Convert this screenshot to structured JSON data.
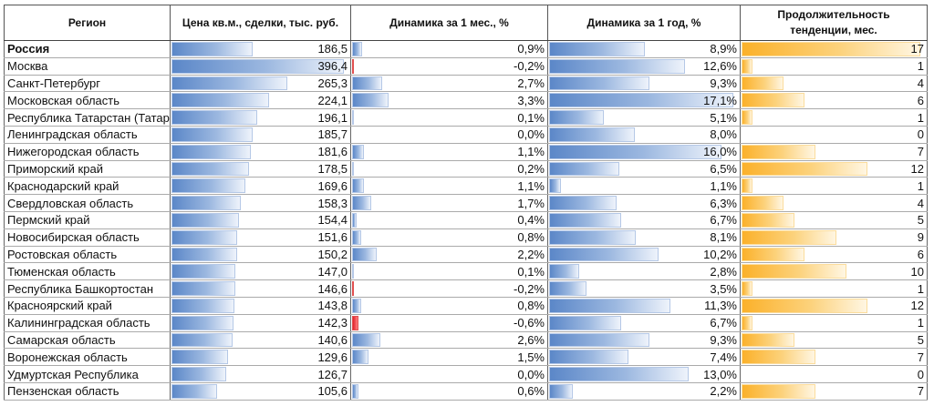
{
  "chart_data": {
    "type": "table",
    "columns": [
      "Регион",
      "Цена кв.м., сделки, тыс. руб.",
      "Динамика за 1 мес., %",
      "Динамика за 1 год, %",
      "Продолжительность тенденции, мес."
    ],
    "colors": {
      "bar_blue": "#5b87c8",
      "bar_negative": "#e0202a",
      "bar_orange": "#fbb12a"
    },
    "rows": [
      {
        "region": "Россия",
        "price": "186,5",
        "m1": "0,9%",
        "y1": "8,9%",
        "dur": "17"
      },
      {
        "region": "Москва",
        "price": "396,4",
        "m1": "-0,2%",
        "y1": "12,6%",
        "dur": "1"
      },
      {
        "region": "Санкт-Петербург",
        "price": "265,3",
        "m1": "2,7%",
        "y1": "9,3%",
        "dur": "4"
      },
      {
        "region": "Московская область",
        "price": "224,1",
        "m1": "3,3%",
        "y1": "17,1%",
        "dur": "6"
      },
      {
        "region": "Республика Татарстан (Татар",
        "price": "196,1",
        "m1": "0,1%",
        "y1": "5,1%",
        "dur": "1"
      },
      {
        "region": "Ленинградская область",
        "price": "185,7",
        "m1": "0,0%",
        "y1": "8,0%",
        "dur": "0"
      },
      {
        "region": "Нижегородская область",
        "price": "181,6",
        "m1": "1,1%",
        "y1": "16,0%",
        "dur": "7"
      },
      {
        "region": "Приморский край",
        "price": "178,5",
        "m1": "0,2%",
        "y1": "6,5%",
        "dur": "12"
      },
      {
        "region": "Краснодарский край",
        "price": "169,6",
        "m1": "1,1%",
        "y1": "1,1%",
        "dur": "1"
      },
      {
        "region": "Свердловская область",
        "price": "158,3",
        "m1": "1,7%",
        "y1": "6,3%",
        "dur": "4"
      },
      {
        "region": "Пермский край",
        "price": "154,4",
        "m1": "0,4%",
        "y1": "6,7%",
        "dur": "5"
      },
      {
        "region": "Новосибирская область",
        "price": "151,6",
        "m1": "0,8%",
        "y1": "8,1%",
        "dur": "9"
      },
      {
        "region": "Ростовская область",
        "price": "150,2",
        "m1": "2,2%",
        "y1": "10,2%",
        "dur": "6"
      },
      {
        "region": "Тюменская область",
        "price": "147,0",
        "m1": "0,1%",
        "y1": "2,8%",
        "dur": "10"
      },
      {
        "region": "Республика Башкортостан",
        "price": "146,6",
        "m1": "-0,2%",
        "y1": "3,5%",
        "dur": "1"
      },
      {
        "region": "Красноярский край",
        "price": "143,8",
        "m1": "0,8%",
        "y1": "11,3%",
        "dur": "12"
      },
      {
        "region": "Калининградская область",
        "price": "142,3",
        "m1": "-0,6%",
        "y1": "6,7%",
        "dur": "1"
      },
      {
        "region": "Самарская область",
        "price": "140,6",
        "m1": "2,6%",
        "y1": "9,3%",
        "dur": "5"
      },
      {
        "region": "Воронежская область",
        "price": "129,6",
        "m1": "1,5%",
        "y1": "7,4%",
        "dur": "7"
      },
      {
        "region": "Удмуртская Республика",
        "price": "126,7",
        "m1": "0,0%",
        "y1": "13,0%",
        "dur": "0"
      },
      {
        "region": "Пензенская область",
        "price": "105,6",
        "m1": "0,6%",
        "y1": "2,2%",
        "dur": "7"
      }
    ]
  }
}
